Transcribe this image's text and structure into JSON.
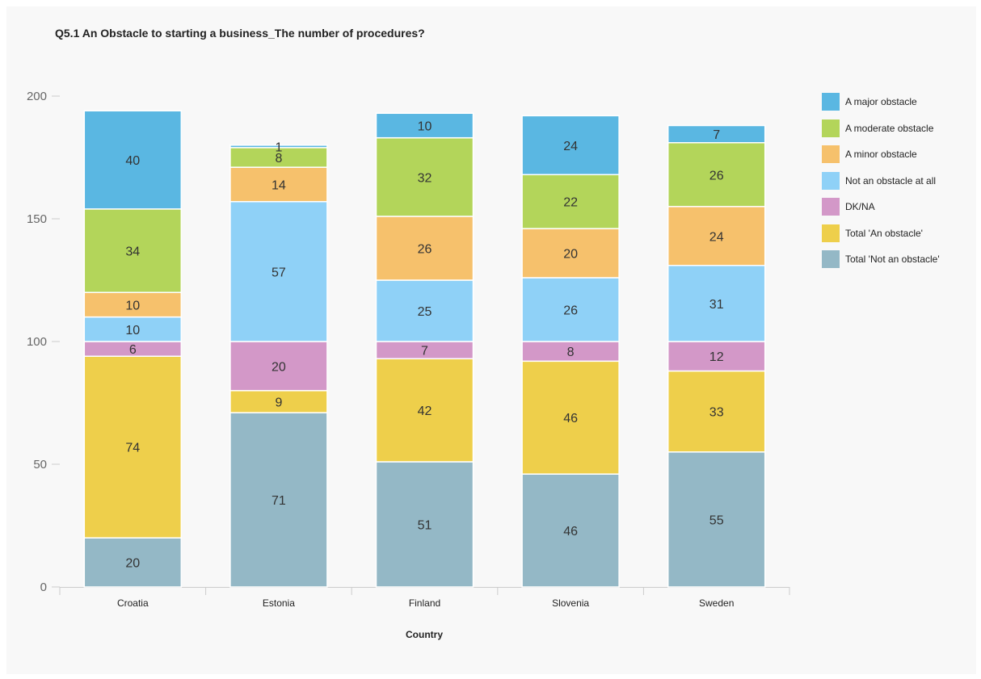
{
  "chart_data": {
    "type": "bar",
    "stacked": true,
    "title": "Q5.1 An Obstacle to starting a business_The number of procedures?",
    "xlabel": "Country",
    "ylabel": "",
    "ylim": [
      0,
      200
    ],
    "yticks": [
      0,
      50,
      100,
      150,
      200
    ],
    "grid": false,
    "legend_position": "right",
    "categories": [
      "Croatia",
      "Estonia",
      "Finland",
      "Slovenia",
      "Sweden"
    ],
    "series": [
      {
        "name": "Total 'Not an obstacle'",
        "color": "#94b8c6",
        "values": [
          20,
          71,
          51,
          46,
          55
        ]
      },
      {
        "name": "Total 'An obstacle'",
        "color": "#eecf4b",
        "values": [
          74,
          9,
          42,
          46,
          33
        ]
      },
      {
        "name": "DK/NA",
        "color": "#d398c8",
        "values": [
          6,
          20,
          7,
          8,
          12
        ]
      },
      {
        "name": "Not an obstacle at all",
        "color": "#8fd1f7",
        "values": [
          10,
          57,
          25,
          26,
          31
        ]
      },
      {
        "name": "A minor obstacle",
        "color": "#f6c16c",
        "values": [
          10,
          14,
          26,
          20,
          24
        ]
      },
      {
        "name": "A moderate obstacle",
        "color": "#b3d55a",
        "values": [
          34,
          8,
          32,
          22,
          26
        ]
      },
      {
        "name": "A major obstacle",
        "color": "#5ab7e2",
        "values": [
          40,
          1,
          10,
          24,
          7
        ]
      }
    ],
    "legend_order": [
      "A major obstacle",
      "A moderate obstacle",
      "A minor obstacle",
      "Not an obstacle at all",
      "DK/NA",
      "Total 'An obstacle'",
      "Total 'Not an obstacle'"
    ]
  }
}
